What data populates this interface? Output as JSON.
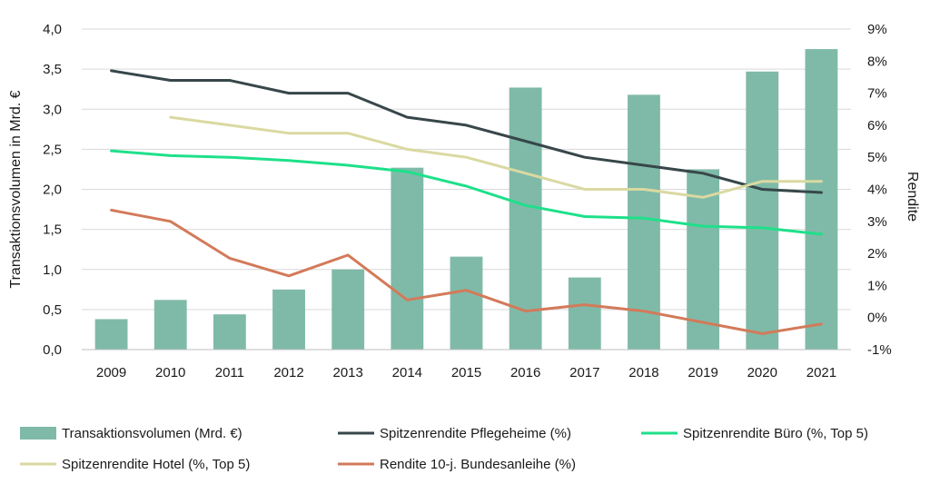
{
  "chart_data": {
    "type": "bar+line",
    "categories": [
      "2009",
      "2010",
      "2011",
      "2012",
      "2013",
      "2014",
      "2015",
      "2016",
      "2017",
      "2018",
      "2019",
      "2020",
      "2021"
    ],
    "y_left": {
      "label": "Transaktionsvolumen in Mrd. €",
      "range": [
        0,
        4
      ],
      "ticks": [
        "0,0",
        "0,5",
        "1,0",
        "1,5",
        "2,0",
        "2,5",
        "3,0",
        "3,5",
        "4,0"
      ]
    },
    "y_right": {
      "label": "Rendite",
      "range": [
        -1,
        9
      ],
      "ticks": [
        "-1%",
        "0%",
        "1%",
        "2%",
        "3%",
        "4%",
        "5%",
        "6%",
        "7%",
        "8%",
        "9%"
      ]
    },
    "bars": {
      "name": "Transaktionsvolumen (Mrd. €)",
      "axis": "left",
      "color": "#7fbaa8",
      "values": [
        0.38,
        0.62,
        0.44,
        0.75,
        1.0,
        2.27,
        1.16,
        3.27,
        0.9,
        3.18,
        2.25,
        3.47,
        3.75
      ]
    },
    "series": [
      {
        "name": "Spitzenrendite Pflegeheime (%)",
        "axis": "right",
        "color": "#37474a",
        "values": [
          7.7,
          7.4,
          7.4,
          7.0,
          7.0,
          6.25,
          6.0,
          5.5,
          5.0,
          4.75,
          4.5,
          4.0,
          3.9
        ]
      },
      {
        "name": "Spitzenrendite Büro (%, Top 5)",
        "axis": "right",
        "color": "#1ee08a",
        "values": [
          5.2,
          5.05,
          5.0,
          4.9,
          4.75,
          4.55,
          4.1,
          3.5,
          3.15,
          3.1,
          2.85,
          2.8,
          2.6
        ]
      },
      {
        "name": "Spitzenrendite Hotel (%, Top 5)",
        "axis": "right",
        "color": "#dad9a1",
        "values": [
          null,
          6.25,
          6.0,
          5.75,
          5.75,
          5.25,
          5.0,
          4.5,
          4.0,
          4.0,
          3.75,
          4.25,
          4.25
        ]
      },
      {
        "name": "Rendite 10-j. Bundesanleihe (%)",
        "axis": "right",
        "color": "#d37a5a",
        "values": [
          3.35,
          3.0,
          1.85,
          1.3,
          1.95,
          0.55,
          0.85,
          0.2,
          0.4,
          0.2,
          -0.15,
          -0.5,
          -0.2
        ]
      }
    ],
    "legend": {
      "placement": "bottom",
      "items": [
        {
          "label": "Transaktionsvolumen (Mrd. €)",
          "kind": "bar",
          "color": "#7fbaa8"
        },
        {
          "label": "Spitzenrendite Pflegeheime (%)",
          "kind": "line",
          "color": "#37474a"
        },
        {
          "label": "Spitzenrendite Büro (%, Top 5)",
          "kind": "line",
          "color": "#1ee08a"
        },
        {
          "label": "Spitzenrendite Hotel (%, Top 5)",
          "kind": "line",
          "color": "#dad9a1"
        },
        {
          "label": "Rendite 10-j. Bundesanleihe (%)",
          "kind": "line",
          "color": "#d37a5a"
        }
      ]
    },
    "grid": true
  }
}
